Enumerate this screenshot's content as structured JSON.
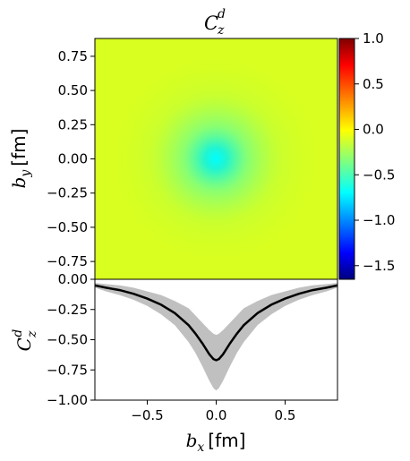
{
  "chart_data": [
    {
      "type": "heatmap",
      "title": {
        "base": "C",
        "sub": "z",
        "sup": "d"
      },
      "ylabel": {
        "base": "b",
        "sub": "y",
        "unit": "[fm]"
      },
      "xlim": [
        -0.88,
        0.88
      ],
      "ylim": [
        -0.88,
        0.88
      ],
      "yticks": [
        "0.75",
        "0.50",
        "0.25",
        "0.00",
        "−0.25",
        "−0.50",
        "−0.75"
      ],
      "ytick_values": [
        0.75,
        0.5,
        0.25,
        0.0,
        -0.25,
        -0.5,
        -0.75
      ],
      "center": [
        0.0,
        0.0
      ],
      "center_value": -0.67,
      "background_value": 0.0,
      "colormap": "jet",
      "colorbar": {
        "range": [
          -1.65,
          1.0
        ],
        "ticks": [
          "1.0",
          "0.5",
          "0.0",
          "−0.5",
          "−1.0",
          "−1.5"
        ],
        "tick_values": [
          1.0,
          0.5,
          0.0,
          -0.5,
          -1.0,
          -1.5
        ]
      }
    },
    {
      "type": "line",
      "ylabel": {
        "base": "C",
        "sub": "z",
        "sup": "d"
      },
      "xlabel": {
        "base": "b",
        "sub": "x",
        "unit": "[fm]"
      },
      "xlim": [
        -0.88,
        0.88
      ],
      "ylim": [
        -1.0,
        0.0
      ],
      "xticks": [
        "−0.5",
        "0.0",
        "0.5"
      ],
      "xtick_values": [
        -0.5,
        0.0,
        0.5
      ],
      "yticks": [
        "0.00",
        "−0.25",
        "−0.50",
        "−0.75",
        "−1.00"
      ],
      "ytick_values": [
        0.0,
        -0.25,
        -0.5,
        -0.75,
        -1.0
      ],
      "series": [
        {
          "x": [
            -0.88,
            -0.8,
            -0.7,
            -0.6,
            -0.5,
            -0.4,
            -0.3,
            -0.2,
            -0.15,
            -0.1,
            -0.05,
            -0.02,
            0.0,
            0.02,
            0.05,
            0.1,
            0.15,
            0.2,
            0.3,
            0.4,
            0.5,
            0.6,
            0.7,
            0.8,
            0.88
          ],
          "y": [
            -0.05,
            -0.07,
            -0.09,
            -0.12,
            -0.16,
            -0.21,
            -0.28,
            -0.38,
            -0.45,
            -0.53,
            -0.62,
            -0.66,
            -0.67,
            -0.66,
            -0.62,
            -0.53,
            -0.45,
            -0.38,
            -0.28,
            -0.21,
            -0.16,
            -0.12,
            -0.09,
            -0.07,
            -0.05
          ],
          "band_upper": [
            -0.03,
            -0.04,
            -0.05,
            -0.07,
            -0.1,
            -0.13,
            -0.18,
            -0.24,
            -0.3,
            -0.36,
            -0.42,
            -0.45,
            -0.46,
            -0.45,
            -0.42,
            -0.36,
            -0.3,
            -0.24,
            -0.18,
            -0.13,
            -0.1,
            -0.07,
            -0.05,
            -0.04,
            -0.03
          ],
          "band_lower": [
            -0.07,
            -0.1,
            -0.13,
            -0.17,
            -0.22,
            -0.29,
            -0.38,
            -0.52,
            -0.61,
            -0.72,
            -0.84,
            -0.9,
            -0.92,
            -0.9,
            -0.84,
            -0.72,
            -0.61,
            -0.52,
            -0.38,
            -0.29,
            -0.22,
            -0.17,
            -0.13,
            -0.1,
            -0.07
          ],
          "color": "#000000",
          "band_color": "#c0c0c0"
        }
      ]
    }
  ]
}
